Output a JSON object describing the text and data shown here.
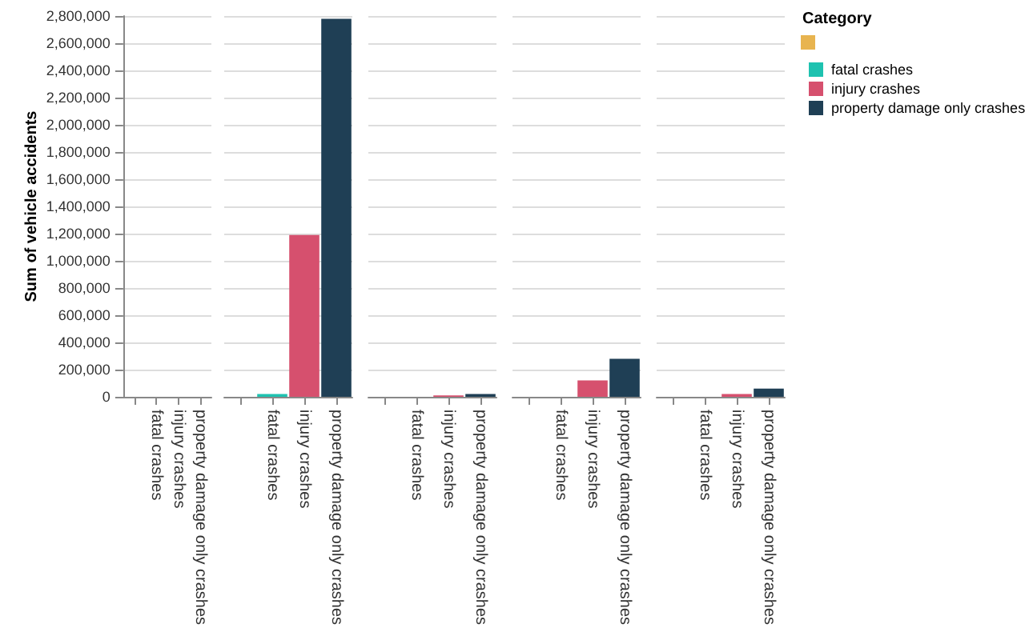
{
  "chart_data": [
    {
      "type": "bar",
      "ylabel": "Sum of vehicle accidents",
      "categories": [
        null,
        "fatal crashes",
        "injury crashes",
        "property damage only crashes"
      ],
      "series": [
        {
          "color": "#e8b44f",
          "values": [
            null,
            null,
            null,
            null
          ]
        },
        {
          "color": "#1ec2b0",
          "values": [
            null,
            0,
            null,
            null
          ]
        },
        {
          "color": "#d6506e",
          "values": [
            null,
            null,
            0,
            null
          ]
        },
        {
          "color": "#1f3f55",
          "values": [
            null,
            null,
            null,
            0
          ]
        }
      ],
      "ylim": [
        0,
        2800000
      ],
      "yticks": [
        {
          "value": 0,
          "label": "0"
        },
        {
          "value": 200000,
          "label": "200,000"
        },
        {
          "value": 400000,
          "label": "400,000"
        },
        {
          "value": 600000,
          "label": "600,000"
        },
        {
          "value": 800000,
          "label": "800,000"
        },
        {
          "value": 1000000,
          "label": "1,000,000"
        },
        {
          "value": 1200000,
          "label": "1,200,000"
        },
        {
          "value": 1400000,
          "label": "1,400,000"
        },
        {
          "value": 1600000,
          "label": "1,600,000"
        },
        {
          "value": 1800000,
          "label": "1,800,000"
        },
        {
          "value": 2000000,
          "label": "2,000,000"
        },
        {
          "value": 2200000,
          "label": "2,200,000"
        },
        {
          "value": 2400000,
          "label": "2,400,000"
        },
        {
          "value": 2600000,
          "label": "2,600,000"
        },
        {
          "value": 2800000,
          "label": "2,800,000"
        }
      ],
      "grid": "y"
    },
    {
      "type": "bar",
      "categories": [
        null,
        "fatal crashes",
        "injury crashes",
        "property damage only crashes"
      ],
      "series": [
        {
          "color": "#e8b44f",
          "values": [
            null,
            null,
            null,
            null
          ]
        },
        {
          "color": "#1ec2b0",
          "values": [
            null,
            20000,
            null,
            null
          ]
        },
        {
          "color": "#d6506e",
          "values": [
            null,
            null,
            1190000,
            null
          ]
        },
        {
          "color": "#1f3f55",
          "values": [
            null,
            null,
            null,
            2780000
          ]
        }
      ],
      "ylim": [
        0,
        2800000
      ],
      "yticks": [
        0,
        200000,
        400000,
        600000,
        800000,
        1000000,
        1200000,
        1400000,
        1600000,
        1800000,
        2000000,
        2200000,
        2400000,
        2600000,
        2800000
      ],
      "grid": "y",
      "tick_labels": "x"
    },
    {
      "type": "bar",
      "categories": [
        null,
        "fatal crashes",
        "injury crashes",
        "property damage only crashes"
      ],
      "series": [
        {
          "color": "#e8b44f",
          "values": [
            null,
            null,
            null,
            null
          ]
        },
        {
          "color": "#1ec2b0",
          "values": [
            null,
            0,
            null,
            null
          ]
        },
        {
          "color": "#d6506e",
          "values": [
            null,
            null,
            10000,
            null
          ]
        },
        {
          "color": "#1f3f55",
          "values": [
            null,
            null,
            null,
            20000
          ]
        }
      ],
      "ylim": [
        0,
        2800000
      ],
      "yticks": [
        0,
        200000,
        400000,
        600000,
        800000,
        1000000,
        1200000,
        1400000,
        1600000,
        1800000,
        2000000,
        2200000,
        2400000,
        2600000,
        2800000
      ],
      "grid": "y",
      "tick_labels": "x"
    },
    {
      "type": "bar",
      "categories": [
        null,
        "fatal crashes",
        "injury crashes",
        "property damage only crashes"
      ],
      "series": [
        {
          "color": "#e8b44f",
          "values": [
            null,
            null,
            null,
            null
          ]
        },
        {
          "color": "#1ec2b0",
          "values": [
            null,
            0,
            null,
            null
          ]
        },
        {
          "color": "#d6506e",
          "values": [
            null,
            null,
            120000,
            null
          ]
        },
        {
          "color": "#1f3f55",
          "values": [
            null,
            null,
            null,
            280000
          ]
        }
      ],
      "ylim": [
        0,
        2800000
      ],
      "yticks": [
        0,
        200000,
        400000,
        600000,
        800000,
        1000000,
        1200000,
        1400000,
        1600000,
        1800000,
        2000000,
        2200000,
        2400000,
        2600000,
        2800000
      ],
      "grid": "y",
      "tick_labels": "x"
    },
    {
      "type": "bar",
      "categories": [
        null,
        "fatal crashes",
        "injury crashes",
        "property damage only crashes"
      ],
      "series": [
        {
          "color": "#e8b44f",
          "values": [
            null,
            null,
            null,
            null
          ]
        },
        {
          "name": "fatal crashes",
          "color": "#1ec2b0",
          "values": [
            null,
            0,
            null,
            null
          ]
        },
        {
          "name": "injury crashes",
          "color": "#d6506e",
          "values": [
            null,
            null,
            20000,
            null
          ]
        },
        {
          "name": "property damage only crashes",
          "color": "#1f3f55",
          "values": [
            null,
            null,
            null,
            60000
          ]
        }
      ],
      "ylim": [
        0,
        2800000
      ],
      "yticks": [
        0,
        200000,
        400000,
        600000,
        800000,
        1000000,
        1200000,
        1400000,
        1600000,
        1800000,
        2000000,
        2200000,
        2400000,
        2600000,
        2800000
      ],
      "grid": "y",
      "tick_labels": "x",
      "legend": "right",
      "legend_title": "Category"
    }
  ]
}
